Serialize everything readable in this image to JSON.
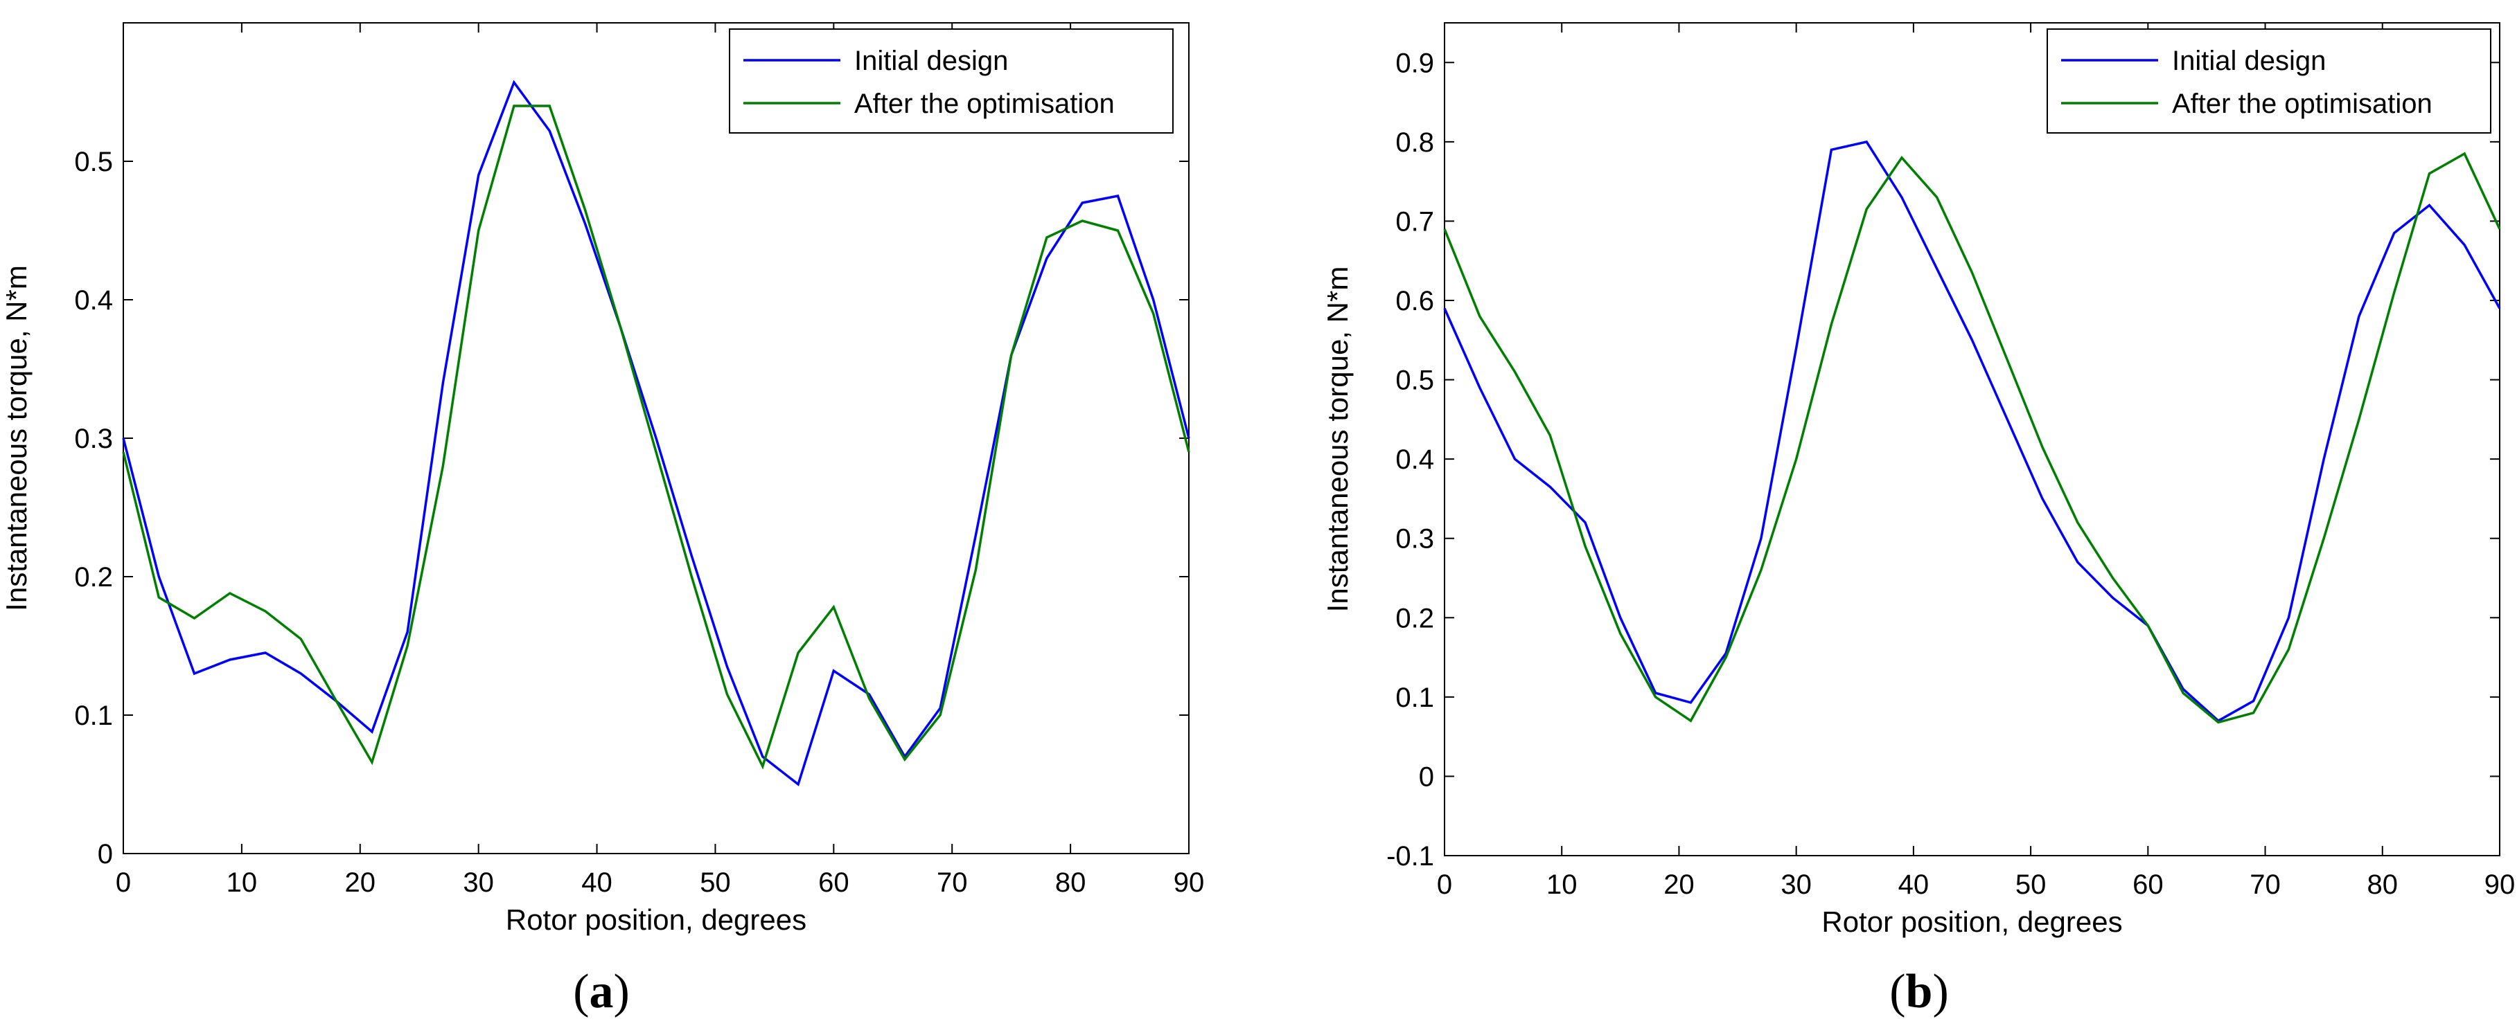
{
  "chart_data": [
    {
      "type": "line",
      "panel_label": "a",
      "xlabel": "Rotor position, degrees",
      "ylabel": "Instantaneous torque, N*m",
      "xlim": [
        0,
        90
      ],
      "ylim": [
        0,
        0.6
      ],
      "xticks": [
        0,
        10,
        20,
        30,
        40,
        50,
        60,
        70,
        80,
        90
      ],
      "yticks": [
        0,
        0.1,
        0.2,
        0.3,
        0.4,
        0.5
      ],
      "legend_position": "top-right",
      "series": [
        {
          "name": "Initial design",
          "color": "#0000ff",
          "x": [
            0,
            3,
            6,
            9,
            12,
            15,
            18,
            21,
            24,
            27,
            30,
            33,
            36,
            39,
            42,
            45,
            48,
            51,
            54,
            57,
            60,
            63,
            66,
            69,
            72,
            75,
            78,
            81,
            84,
            87,
            90
          ],
          "y": [
            0.3,
            0.2,
            0.13,
            0.14,
            0.145,
            0.13,
            0.11,
            0.088,
            0.16,
            0.34,
            0.49,
            0.557,
            0.522,
            0.455,
            0.38,
            0.3,
            0.215,
            0.135,
            0.07,
            0.05,
            0.132,
            0.115,
            0.07,
            0.105,
            0.23,
            0.36,
            0.43,
            0.47,
            0.475,
            0.4,
            0.3
          ]
        },
        {
          "name": "After the optimisation",
          "color": "#008000",
          "x": [
            0,
            3,
            6,
            9,
            12,
            15,
            18,
            21,
            24,
            27,
            30,
            33,
            36,
            39,
            42,
            45,
            48,
            51,
            54,
            57,
            60,
            63,
            66,
            69,
            72,
            75,
            78,
            81,
            84,
            87,
            90
          ],
          "y": [
            0.29,
            0.185,
            0.17,
            0.188,
            0.175,
            0.155,
            0.11,
            0.066,
            0.15,
            0.28,
            0.45,
            0.54,
            0.54,
            0.465,
            0.38,
            0.29,
            0.2,
            0.115,
            0.063,
            0.145,
            0.178,
            0.112,
            0.068,
            0.1,
            0.205,
            0.36,
            0.445,
            0.457,
            0.45,
            0.39,
            0.29
          ]
        }
      ]
    },
    {
      "type": "line",
      "panel_label": "b",
      "xlabel": "Rotor position, degrees",
      "ylabel": "Instantaneous torque, N*m",
      "xlim": [
        0,
        90
      ],
      "ylim": [
        -0.1,
        0.95
      ],
      "xticks": [
        0,
        10,
        20,
        30,
        40,
        50,
        60,
        70,
        80,
        90
      ],
      "yticks": [
        -0.1,
        0,
        0.1,
        0.2,
        0.3,
        0.4,
        0.5,
        0.6,
        0.7,
        0.8,
        0.9
      ],
      "legend_position": "top-right",
      "series": [
        {
          "name": "Initial design",
          "color": "#0000ff",
          "x": [
            0,
            3,
            6,
            9,
            12,
            15,
            18,
            21,
            24,
            27,
            30,
            33,
            36,
            39,
            42,
            45,
            48,
            51,
            54,
            57,
            60,
            63,
            66,
            69,
            72,
            75,
            78,
            81,
            84,
            87,
            90
          ],
          "y": [
            0.59,
            0.49,
            0.4,
            0.365,
            0.32,
            0.2,
            0.105,
            0.093,
            0.155,
            0.3,
            0.54,
            0.79,
            0.8,
            0.73,
            0.64,
            0.55,
            0.45,
            0.35,
            0.27,
            0.225,
            0.19,
            0.11,
            0.07,
            0.095,
            0.2,
            0.4,
            0.58,
            0.685,
            0.72,
            0.67,
            0.59
          ]
        },
        {
          "name": "After the optimisation",
          "color": "#008000",
          "x": [
            0,
            3,
            6,
            9,
            12,
            15,
            18,
            21,
            24,
            27,
            30,
            33,
            36,
            39,
            42,
            45,
            48,
            51,
            54,
            57,
            60,
            63,
            66,
            69,
            72,
            75,
            78,
            81,
            84,
            87,
            90
          ],
          "y": [
            0.69,
            0.58,
            0.51,
            0.43,
            0.29,
            0.18,
            0.1,
            0.07,
            0.15,
            0.26,
            0.4,
            0.57,
            0.715,
            0.78,
            0.73,
            0.635,
            0.525,
            0.415,
            0.32,
            0.25,
            0.19,
            0.105,
            0.068,
            0.08,
            0.16,
            0.3,
            0.45,
            0.61,
            0.76,
            0.785,
            0.69
          ]
        }
      ]
    }
  ]
}
